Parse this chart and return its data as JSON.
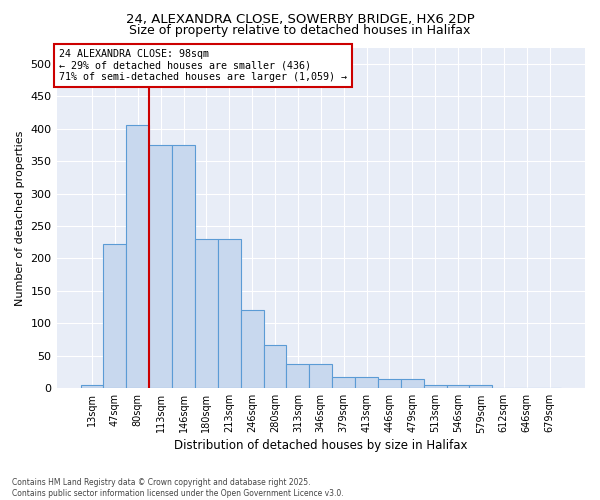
{
  "title_line1": "24, ALEXANDRA CLOSE, SOWERBY BRIDGE, HX6 2DP",
  "title_line2": "Size of property relative to detached houses in Halifax",
  "xlabel": "Distribution of detached houses by size in Halifax",
  "ylabel": "Number of detached properties",
  "annotation_line1": "24 ALEXANDRA CLOSE: 98sqm",
  "annotation_line2": "← 29% of detached houses are smaller (436)",
  "annotation_line3": "71% of semi-detached houses are larger (1,059) →",
  "bar_color": "#c8d8ee",
  "bar_edge_color": "#5b9bd5",
  "background_color": "#e8edf7",
  "grid_color": "#ffffff",
  "vline_color": "#cc0000",
  "categories": [
    "13sqm",
    "47sqm",
    "80sqm",
    "113sqm",
    "146sqm",
    "180sqm",
    "213sqm",
    "246sqm",
    "280sqm",
    "313sqm",
    "346sqm",
    "379sqm",
    "413sqm",
    "446sqm",
    "479sqm",
    "513sqm",
    "546sqm",
    "579sqm",
    "612sqm",
    "646sqm",
    "679sqm"
  ],
  "values": [
    5,
    222,
    405,
    375,
    375,
    230,
    230,
    120,
    67,
    38,
    38,
    17,
    17,
    14,
    14,
    5,
    5,
    5,
    1,
    1,
    1
  ],
  "ylim_max": 525,
  "yticks": [
    0,
    50,
    100,
    150,
    200,
    250,
    300,
    350,
    400,
    450,
    500
  ],
  "vline_position": 2.5,
  "footer": "Contains HM Land Registry data © Crown copyright and database right 2025.\nContains public sector information licensed under the Open Government Licence v3.0."
}
